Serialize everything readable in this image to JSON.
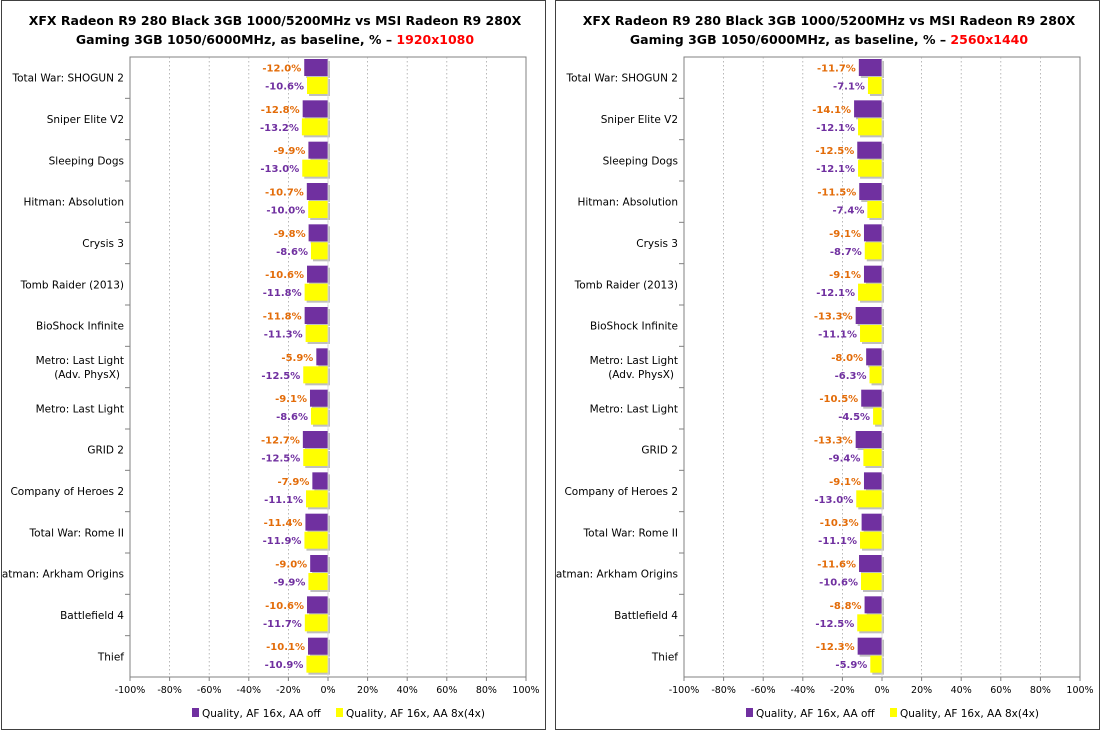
{
  "chart_data": [
    {
      "type": "bar",
      "orientation": "horizontal",
      "title_prefix": "XFX Radeon R9 280 Black 3GB 1000/5200MHz vs MSI Radeon R9 280X Gaming 3GB 1050/6000MHz, as baseline, % –",
      "title_line1": "XFX Radeon R9 280 Black 3GB 1000/5200MHz vs MSI Radeon R9 280X",
      "title_line2": "Gaming 3GB 1050/6000MHz, as baseline, % –",
      "resolution": "1920x1080",
      "categories": [
        "Total War: SHOGUN 2",
        "Sniper Elite V2",
        "Sleeping Dogs",
        "Hitman: Absolution",
        "Crysis 3",
        "Tomb Raider (2013)",
        "BioShock Infinite",
        "Metro: Last Light (Adv. PhysX)",
        "Metro: Last Light",
        "GRID 2",
        "Company of Heroes 2",
        "Total War: Rome II",
        "Batman: Arkham Origins",
        "Battlefield 4",
        "Thief"
      ],
      "series": [
        {
          "name": "Quality,  AF 16x,  AA off",
          "color": "#7030A0",
          "label_color": "#E36C09",
          "values": [
            -12.0,
            -12.8,
            -9.9,
            -10.7,
            -9.8,
            -10.6,
            -11.8,
            -5.9,
            -9.1,
            -12.7,
            -7.9,
            -11.4,
            -9.0,
            -10.6,
            -10.1
          ],
          "labels": [
            "-12.0%",
            "-12.8%",
            "-9.9%",
            "-10.7%",
            "-9.8%",
            "-10.6%",
            "-11.8%",
            "-5.9%",
            "-9.1%",
            "-12.7%",
            "-7.9%",
            "-11.4%",
            "-9.0%",
            "-10.6%",
            "-10.1%"
          ]
        },
        {
          "name": "Quality,  AF 16x,  AA 8x(4x)",
          "color": "#FFFF00",
          "label_color": "#7030A0",
          "values": [
            -10.6,
            -13.2,
            -13.0,
            -10.0,
            -8.6,
            -11.8,
            -11.3,
            -12.5,
            -8.6,
            -12.5,
            -11.1,
            -11.9,
            -9.9,
            -11.7,
            -10.9
          ],
          "labels": [
            "-10.6%",
            "-13.2%",
            "-13.0%",
            "-10.0%",
            "-8.6%",
            "-11.8%",
            "-11.3%",
            "-12.5%",
            "-8.6%",
            "-12.5%",
            "-11.1%",
            "-11.9%",
            "-9.9%",
            "-11.7%",
            "-10.9%"
          ]
        }
      ],
      "x_ticks": [
        "-100%",
        "-80%",
        "-60%",
        "-40%",
        "-20%",
        "0%",
        "20%",
        "40%",
        "60%",
        "80%",
        "100%"
      ],
      "xlim": [
        -100,
        100
      ],
      "grid": true,
      "legend_position": "bottom"
    },
    {
      "type": "bar",
      "orientation": "horizontal",
      "title_prefix": "XFX Radeon R9 280 Black 3GB 1000/5200MHz vs MSI Radeon R9 280X Gaming 3GB 1050/6000MHz, as baseline, % –",
      "title_line1": "XFX Radeon R9 280 Black 3GB 1000/5200MHz vs MSI Radeon R9 280X",
      "title_line2": "Gaming 3GB 1050/6000MHz, as baseline, % –",
      "resolution": "2560x1440",
      "categories": [
        "Total War: SHOGUN 2",
        "Sniper Elite V2",
        "Sleeping Dogs",
        "Hitman: Absolution",
        "Crysis 3",
        "Tomb Raider (2013)",
        "BioShock Infinite",
        "Metro: Last Light (Adv. PhysX)",
        "Metro: Last Light",
        "GRID 2",
        "Company of Heroes 2",
        "Total War: Rome II",
        "Batman: Arkham Origins",
        "Battlefield 4",
        "Thief"
      ],
      "series": [
        {
          "name": "Quality,  AF 16x,  AA off",
          "color": "#7030A0",
          "label_color": "#E36C09",
          "values": [
            -11.7,
            -14.1,
            -12.5,
            -11.5,
            -9.1,
            -9.1,
            -13.3,
            -8.0,
            -10.5,
            -13.3,
            -9.1,
            -10.3,
            -11.6,
            -8.8,
            -12.3
          ],
          "labels": [
            "-11.7%",
            "-14.1%",
            "-12.5%",
            "-11.5%",
            "-9.1%",
            "-9.1%",
            "-13.3%",
            "-8.0%",
            "-10.5%",
            "-13.3%",
            "-9.1%",
            "-10.3%",
            "-11.6%",
            "-8.8%",
            "-12.3%"
          ]
        },
        {
          "name": "Quality,  AF 16x,  AA 8x(4x)",
          "color": "#FFFF00",
          "label_color": "#7030A0",
          "values": [
            -7.1,
            -12.1,
            -12.1,
            -7.4,
            -8.7,
            -12.1,
            -11.1,
            -6.3,
            -4.5,
            -9.4,
            -13.0,
            -11.1,
            -10.6,
            -12.5,
            -5.9
          ],
          "labels": [
            "-7.1%",
            "-12.1%",
            "-12.1%",
            "-7.4%",
            "-8.7%",
            "-12.1%",
            "-11.1%",
            "-6.3%",
            "-4.5%",
            "-9.4%",
            "-13.0%",
            "-11.1%",
            "-10.6%",
            "-12.5%",
            "-5.9%"
          ]
        }
      ],
      "x_ticks": [
        "-100%",
        "-80%",
        "-60%",
        "-40%",
        "-20%",
        "0%",
        "20%",
        "40%",
        "60%",
        "80%",
        "100%"
      ],
      "xlim": [
        -100,
        100
      ],
      "grid": true,
      "legend_position": "bottom"
    }
  ]
}
